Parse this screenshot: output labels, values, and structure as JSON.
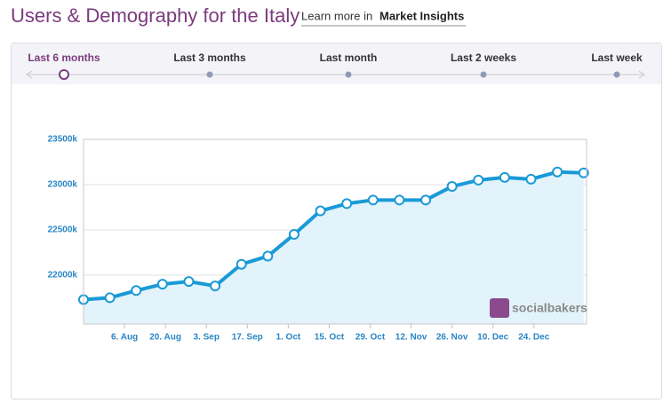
{
  "header": {
    "title": "Users & Demography for the Italy",
    "learn_prefix": "Learn more in",
    "learn_link": "Market Insights"
  },
  "tabs": [
    "Last 6 months",
    "Last 3 months",
    "Last month",
    "Last 2 weeks",
    "Last week"
  ],
  "active_tab": 0,
  "watermark": "socialbakers",
  "chart_data": {
    "type": "line",
    "x": [
      204,
      213,
      222,
      231,
      240,
      249,
      258,
      267,
      276,
      285,
      294,
      303,
      312,
      321,
      330,
      339,
      348,
      357,
      366,
      375
    ],
    "series": [
      {
        "color": "#1a9ad6",
        "values": [
          21730,
          21750,
          21830,
          21900,
          21930,
          21880,
          22120,
          22210,
          22450,
          22710,
          22790,
          22830,
          22830,
          22830,
          22980,
          23050,
          23080,
          23060,
          23140,
          23130
        ]
      }
    ],
    "xlim": [
      204,
      376
    ],
    "xticks": [
      {
        "value": 218,
        "label": "6. Aug"
      },
      {
        "value": 232,
        "label": "20. Aug"
      },
      {
        "value": 246,
        "label": "3. Sep"
      },
      {
        "value": 260,
        "label": "17. Sep"
      },
      {
        "value": 274,
        "label": "1. Oct"
      },
      {
        "value": 288,
        "label": "15. Oct"
      },
      {
        "value": 302,
        "label": "29. Oct"
      },
      {
        "value": 316,
        "label": "12. Nov"
      },
      {
        "value": 330,
        "label": "26. Nov"
      },
      {
        "value": 344,
        "label": "10. Dec"
      },
      {
        "value": 358,
        "label": "24. Dec"
      }
    ],
    "ylim": [
      21460,
      23500
    ],
    "yticks": [
      {
        "value": 22000,
        "label": "22000k"
      },
      {
        "value": 22500,
        "label": "22500k"
      },
      {
        "value": 23000,
        "label": "23000k"
      },
      {
        "value": 23500,
        "label": "23500k"
      }
    ],
    "grid": true
  }
}
